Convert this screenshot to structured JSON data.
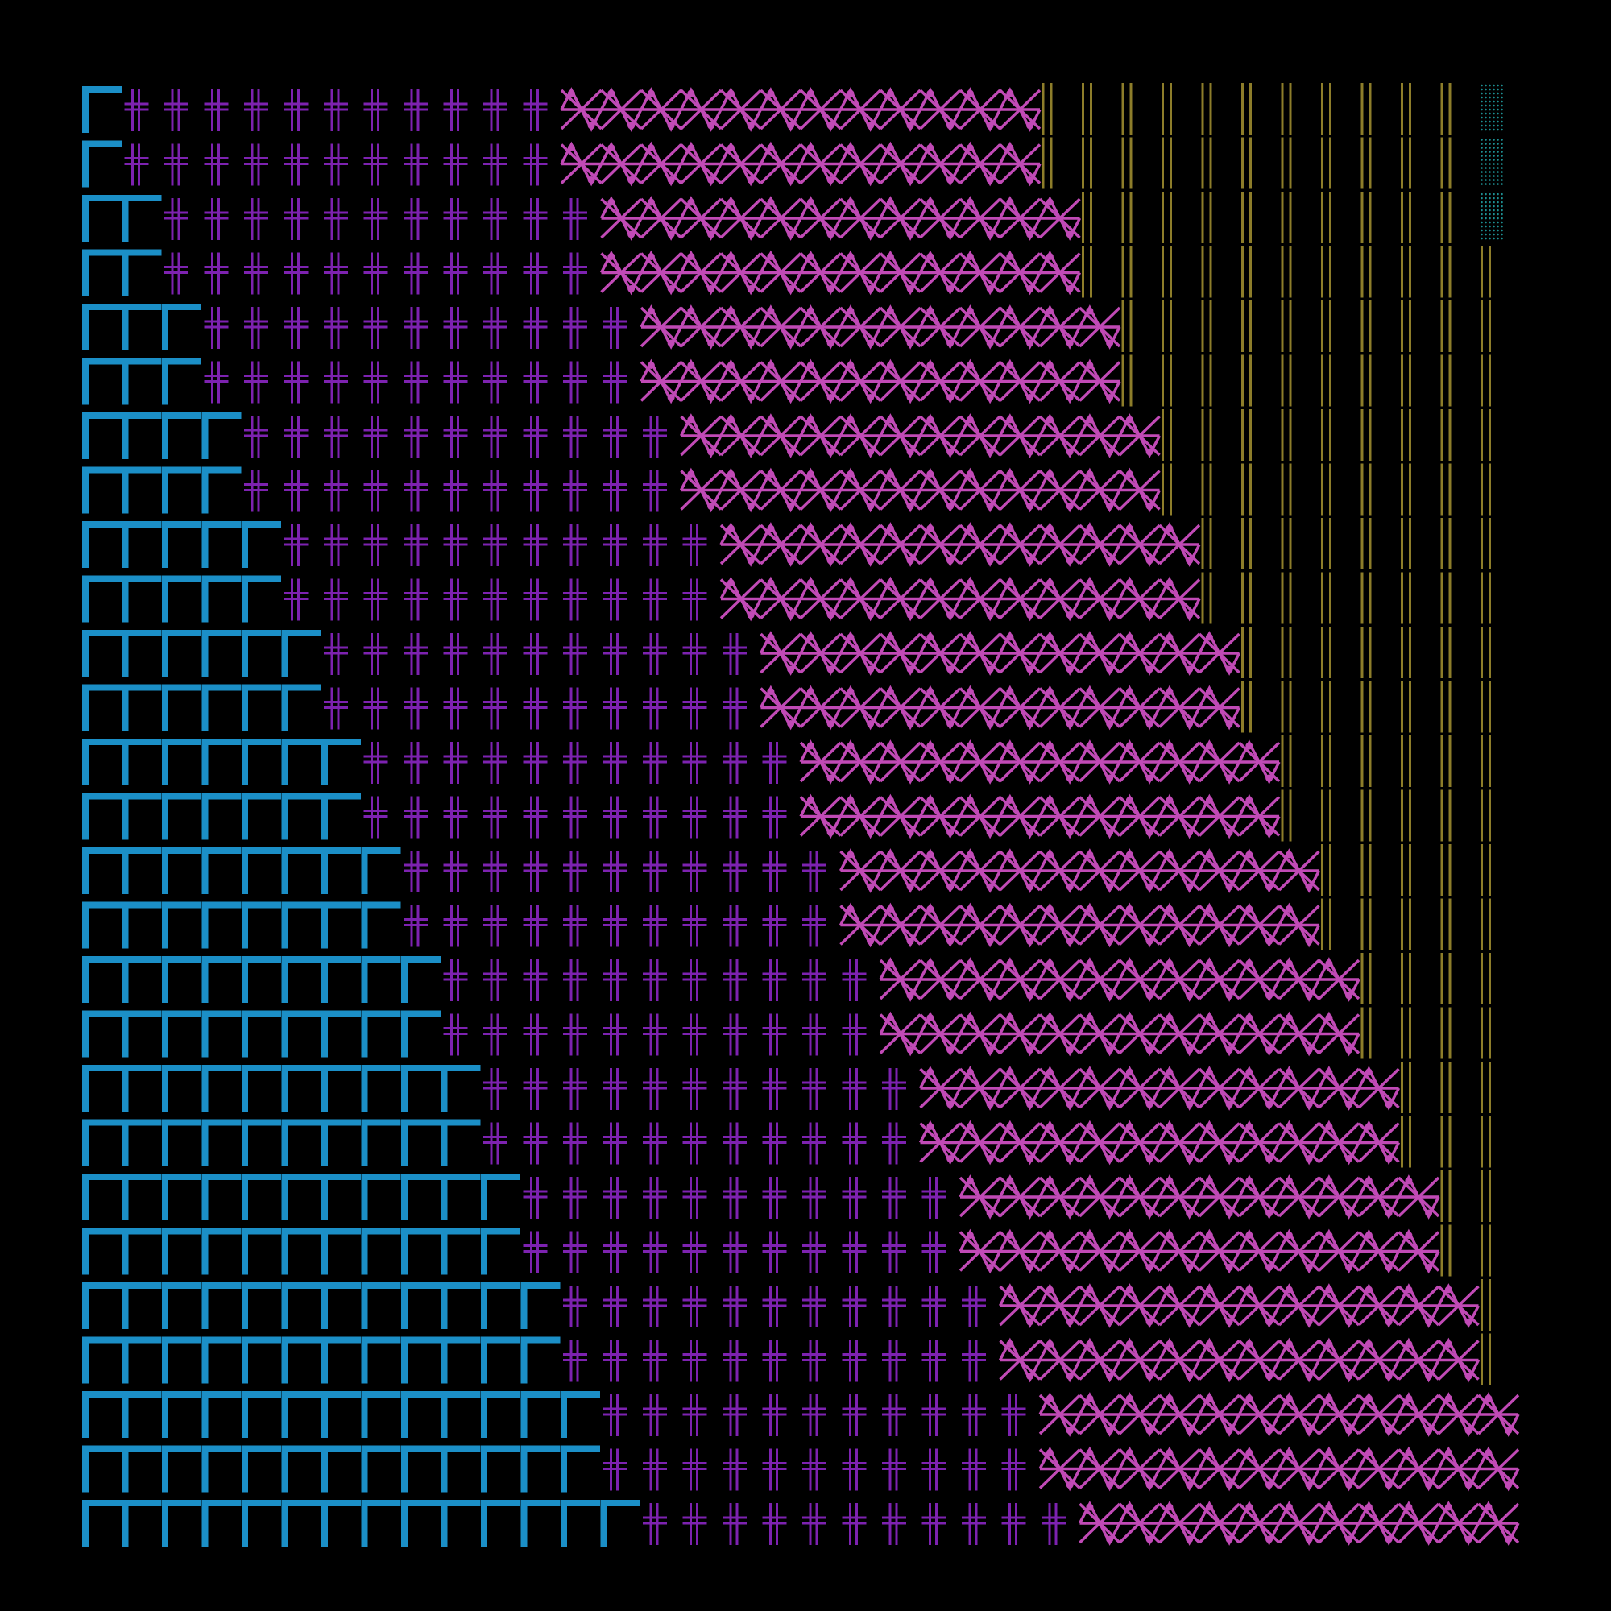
{
  "artwork": {
    "background": "#000000",
    "grid": {
      "columns": 36,
      "rows": 27
    },
    "palette": {
      "blue_brackets": "#1b8fc7",
      "purple_crosses": "#7d22b0",
      "pink_lattice": "#c14ab6",
      "olive_lines": "#8d7d2a",
      "teal_dots": "#1d8f92"
    },
    "bands": [
      {
        "name": "blue-bracket-band",
        "motif": "bracket",
        "start_count": 1,
        "grow_every_rows": 2
      },
      {
        "name": "purple-cross-band",
        "motif": "double-cross",
        "count": 11
      },
      {
        "name": "pink-lattice-band",
        "motif": "x-diamond-dot",
        "count": 12
      },
      {
        "name": "olive-line-band",
        "motif": "double-vertical-line"
      },
      {
        "name": "teal-dot-band",
        "motif": "dot-cluster"
      }
    ]
  }
}
